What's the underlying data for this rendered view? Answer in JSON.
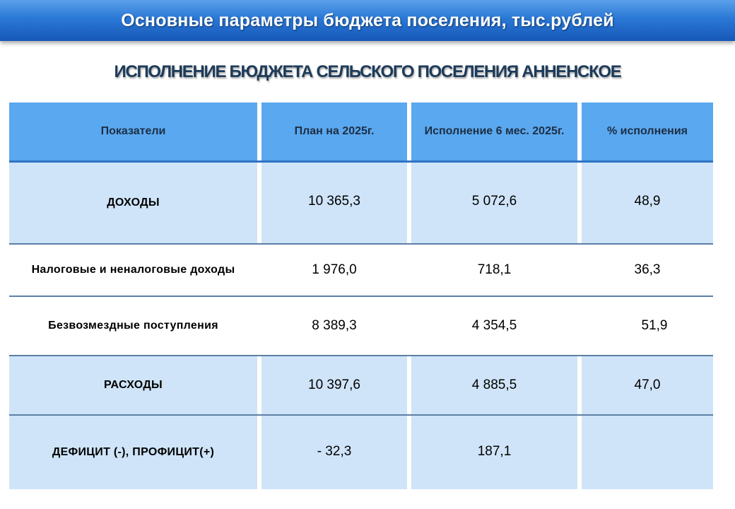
{
  "banner": {
    "title": "Основные параметры бюджета поселения, тыс.рублей"
  },
  "subtitle": "ИСПОЛНЕНИЕ БЮДЖЕТА СЕЛЬСКОГО ПОСЕЛЕНИЯ АННЕНСКОЕ",
  "table": {
    "headers": [
      "Показатели",
      "План на 2025г.",
      "Исполнение 6 мес. 2025г.",
      "% исполнения"
    ],
    "rows": [
      {
        "label": "ДОХОДЫ",
        "plan": "10 365,3",
        "actual": "5 072,6",
        "percent": "48,9"
      },
      {
        "label": "Налоговые и неналоговые доходы",
        "plan": "1 976,0",
        "actual": "718,1",
        "percent": "36,3"
      },
      {
        "label": "Безвозмездные поступления",
        "plan": "8 389,3",
        "actual": "4 354,5",
        "percent": "51,9"
      },
      {
        "label": "РАСХОДЫ",
        "plan": "10 397,6",
        "actual": "4 885,5",
        "percent": "47,0"
      },
      {
        "label": "ДЕФИЦИТ (-), ПРОФИЦИТ(+)",
        "plan": "- 32,3",
        "actual": "187,1",
        "percent": ""
      }
    ]
  },
  "colors": {
    "banner": "#2a78d6",
    "header_cell": "#5aa8ef",
    "light_row": "#cfe4f8",
    "subtitle_text": "#1d3b5a"
  }
}
